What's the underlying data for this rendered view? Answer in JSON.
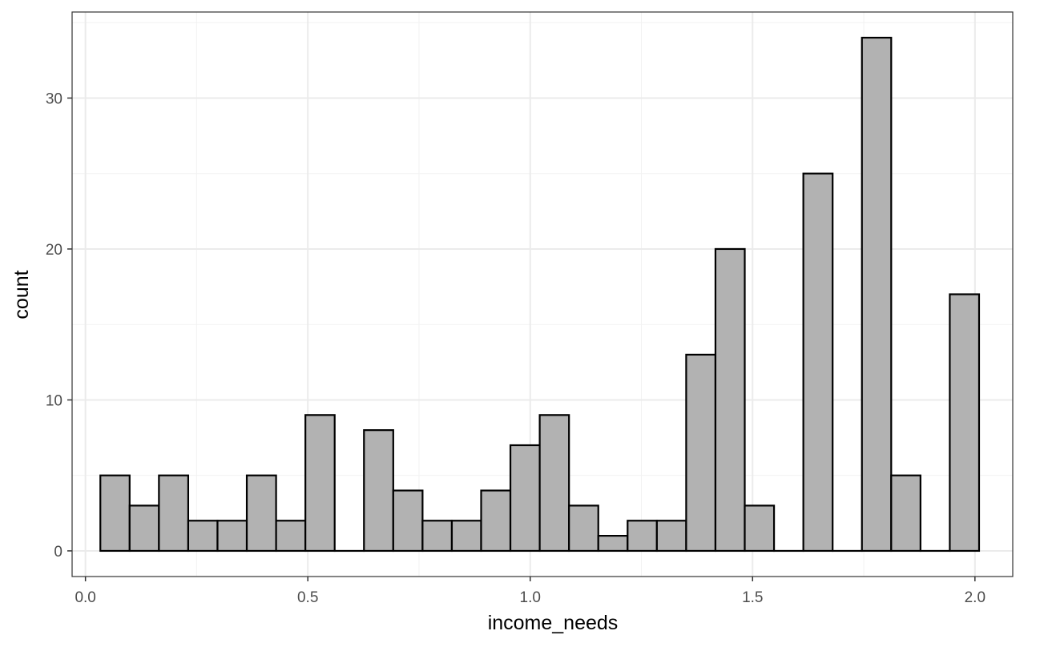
{
  "chart_data": {
    "type": "bar",
    "subtype": "histogram",
    "xlabel": "income_needs",
    "ylabel": "count",
    "xlim": [
      -0.03,
      2.085
    ],
    "ylim": [
      -1.7,
      35.7
    ],
    "x_ticks": [
      {
        "value": 0.0,
        "label": "0.0"
      },
      {
        "value": 0.5,
        "label": "0.5"
      },
      {
        "value": 1.0,
        "label": "1.0"
      },
      {
        "value": 1.5,
        "label": "1.5"
      },
      {
        "value": 2.0,
        "label": "2.0"
      }
    ],
    "y_ticks": [
      {
        "value": 0,
        "label": "0"
      },
      {
        "value": 10,
        "label": "10"
      },
      {
        "value": 20,
        "label": "20"
      },
      {
        "value": 30,
        "label": "30"
      }
    ],
    "bins": {
      "start": 0.0335,
      "width": 0.06586,
      "counts": [
        5,
        3,
        5,
        2,
        2,
        5,
        2,
        9,
        0,
        8,
        4,
        2,
        2,
        4,
        7,
        9,
        3,
        1,
        2,
        2,
        13,
        20,
        3,
        0,
        25,
        0,
        34,
        5,
        0,
        17
      ]
    },
    "grid": true,
    "legend": "none",
    "colors": {
      "bar_fill": "#b2b2b2",
      "bar_stroke": "#000000",
      "grid_major": "#ebebeb",
      "grid_minor": "#f2f2f2",
      "panel_border": "#333333"
    }
  }
}
